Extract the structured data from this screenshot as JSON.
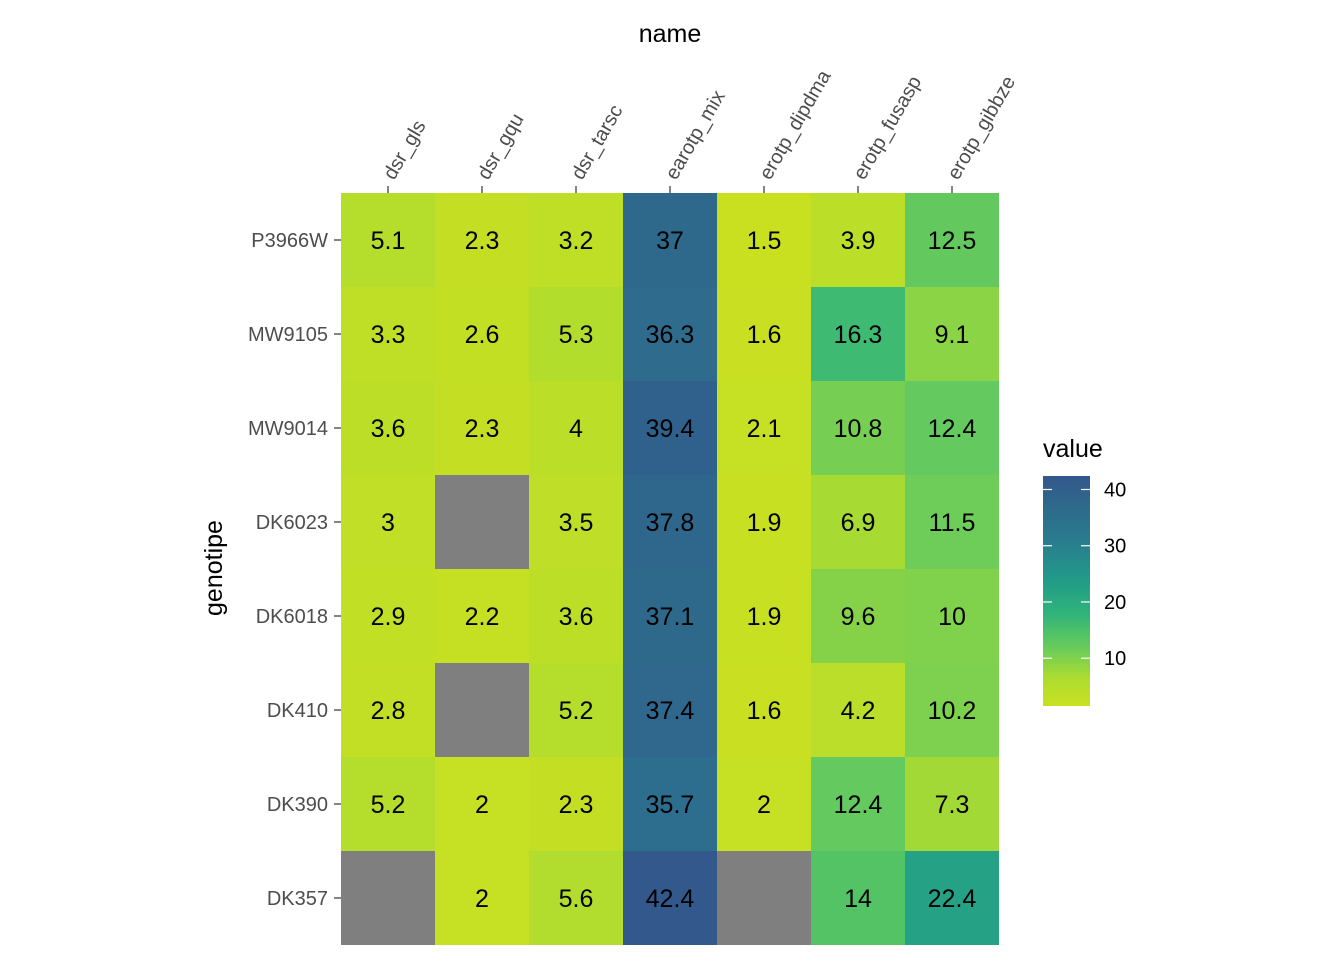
{
  "chart_data": {
    "type": "heatmap",
    "title": "",
    "xlabel": "name",
    "ylabel": "genotipe",
    "x": [
      "dsr_gls",
      "dsr_gqu",
      "dsr_tarsc",
      "earotp_mix",
      "erotp_dipdma",
      "erotp_fusasp",
      "erotp_gibbze"
    ],
    "y": [
      "P3966W",
      "MW9105",
      "MW9014",
      "DK6023",
      "DK6018",
      "DK410",
      "DK390",
      "DK357"
    ],
    "values": [
      [
        5.1,
        2.3,
        3.2,
        37,
        1.5,
        3.9,
        12.5
      ],
      [
        3.3,
        2.6,
        5.3,
        36.3,
        1.6,
        16.3,
        9.1
      ],
      [
        3.6,
        2.3,
        4,
        39.4,
        2.1,
        10.8,
        12.4
      ],
      [
        3,
        null,
        3.5,
        37.8,
        1.9,
        6.9,
        11.5
      ],
      [
        2.9,
        2.2,
        3.6,
        37.1,
        1.9,
        9.6,
        10
      ],
      [
        2.8,
        null,
        5.2,
        37.4,
        1.6,
        4.2,
        10.2
      ],
      [
        5.2,
        2,
        2.3,
        35.7,
        2,
        12.4,
        7.3
      ],
      [
        null,
        2,
        5.6,
        42.4,
        null,
        14,
        22.4
      ]
    ],
    "na_color": "#7f7f7f",
    "legend": {
      "title": "value",
      "position": "right",
      "breaks": [
        10,
        20,
        30,
        40
      ],
      "range": [
        1.5,
        42.4
      ]
    },
    "colormap": "viridis (reversed, partial)",
    "x_axis_position": "top",
    "grid": false
  }
}
